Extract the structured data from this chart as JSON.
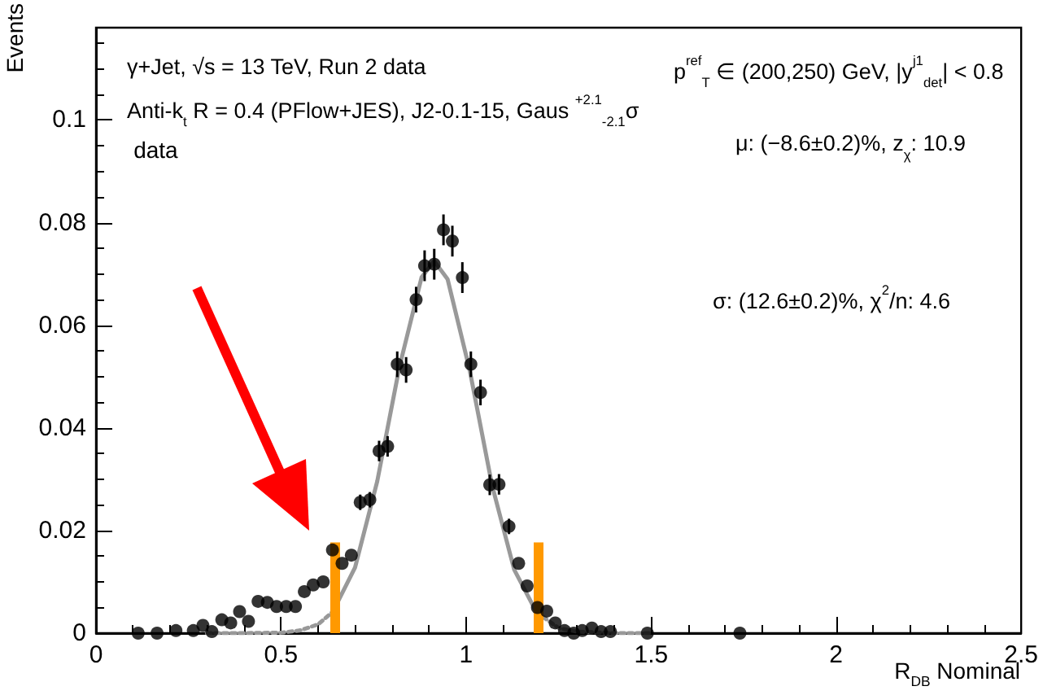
{
  "chart_data": {
    "type": "scatter",
    "xlabel": "R$_{DB}$ Nominal",
    "ylabel": "Events",
    "annotations": [
      "γ+Jet, √s = 13 TeV, Run 2 data",
      "Anti-k$_{t}$ R = 0.4 (PFlow+JES), J2-0.1-15, Gaus $^{+2.1}$$_{-2.1}$σ",
      "p$^{ref}$$_{T}$ ∈ (200,250) GeV, |y$^{j1}$$_{det}$| < 0.8",
      "μ: (−8.6±0.2)%, z$_{χ}$: 10.9",
      "σ: (12.6±0.2)%, χ$^{2}$/n: 4.6"
    ],
    "series": [
      {
        "name": "data",
        "color": "#000000",
        "marker": "circle",
        "x": [
          0.114,
          0.165,
          0.216,
          0.263,
          0.289,
          0.313,
          0.34,
          0.364,
          0.388,
          0.412,
          0.438,
          0.463,
          0.488,
          0.514,
          0.539,
          0.563,
          0.587,
          0.614,
          0.639,
          0.665,
          0.69,
          0.714,
          0.74,
          0.765,
          0.788,
          0.814,
          0.838,
          0.865,
          0.888,
          0.914,
          0.939,
          0.963,
          0.99,
          1.013,
          1.039,
          1.064,
          1.089,
          1.116,
          1.142,
          1.165,
          1.193,
          1.218,
          1.241,
          1.266,
          1.291,
          1.314,
          1.34,
          1.365,
          1.39,
          1.49,
          1.74
        ],
        "values": [
          0,
          0,
          0.0005,
          0.0005,
          0.0015,
          0.0003,
          0.0026,
          0.002,
          0.0042,
          0.0023,
          0.0062,
          0.006,
          0.0052,
          0.0052,
          0.0052,
          0.0081,
          0.0094,
          0.01,
          0.0162,
          0.0136,
          0.0152,
          0.0255,
          0.026,
          0.0355,
          0.0364,
          0.0524,
          0.0513,
          0.065,
          0.0716,
          0.0719,
          0.0786,
          0.0764,
          0.0693,
          0.0524,
          0.0469,
          0.0289,
          0.029,
          0.0208,
          0.0136,
          0.0092,
          0.005,
          0.0043,
          0.002,
          0.0005,
          0,
          0.0005,
          0.001,
          0.0003,
          0.0003,
          0,
          0
        ],
        "errors": [
          null,
          null,
          null,
          null,
          null,
          null,
          null,
          null,
          null,
          null,
          null,
          null,
          null,
          null,
          null,
          null,
          null,
          null,
          null,
          null,
          null,
          0.0015,
          0.0015,
          0.002,
          0.002,
          0.0025,
          0.0025,
          0.0025,
          0.003,
          0.003,
          0.003,
          0.003,
          0.003,
          0.0025,
          0.0025,
          0.002,
          0.002,
          0.0015,
          null,
          null,
          null,
          null,
          null,
          null,
          null,
          null,
          null,
          null,
          null,
          null,
          null
        ]
      },
      {
        "type": "line",
        "color": "#999999",
        "line_style": "solid",
        "marker": "none",
        "x": [
          0.64,
          0.7,
          0.76,
          0.82,
          0.88,
          0.914,
          0.95,
          1.01,
          1.07,
          1.13,
          1.19
        ],
        "values": [
          0.0042,
          0.0128,
          0.0296,
          0.0519,
          0.0694,
          0.0725,
          0.069,
          0.0512,
          0.0289,
          0.0124,
          0.0041
        ]
      },
      {
        "type": "line",
        "color": "#999999",
        "line_style": "dotted",
        "marker": "none",
        "x": [
          0.3,
          0.4,
          0.5,
          0.55,
          0.6,
          0.64
        ],
        "values": [
          0,
          0,
          0.0001,
          0.0005,
          0.0017,
          0.0042
        ]
      },
      {
        "type": "line",
        "color": "#999999",
        "line_style": "dotted",
        "marker": "none",
        "x": [
          1.19,
          1.25,
          1.3,
          1.4,
          1.5
        ],
        "values": [
          0.0041,
          0.001,
          0.0003,
          0,
          0
        ]
      }
    ],
    "ref_lines": [
      {
        "axis": "x",
        "value": 0.645,
        "color": "#ff9900"
      },
      {
        "axis": "x",
        "value": 1.195,
        "color": "#ff9900"
      }
    ],
    "xlim": [
      0,
      2.5
    ],
    "xticks": [
      0,
      0.5,
      1,
      1.5,
      2,
      2.5
    ],
    "ylim": [
      0,
      0.118
    ],
    "yticks": [
      0,
      0.02,
      0.04,
      0.06,
      0.08,
      0.1
    ],
    "grid": false,
    "legend": "top left"
  }
}
